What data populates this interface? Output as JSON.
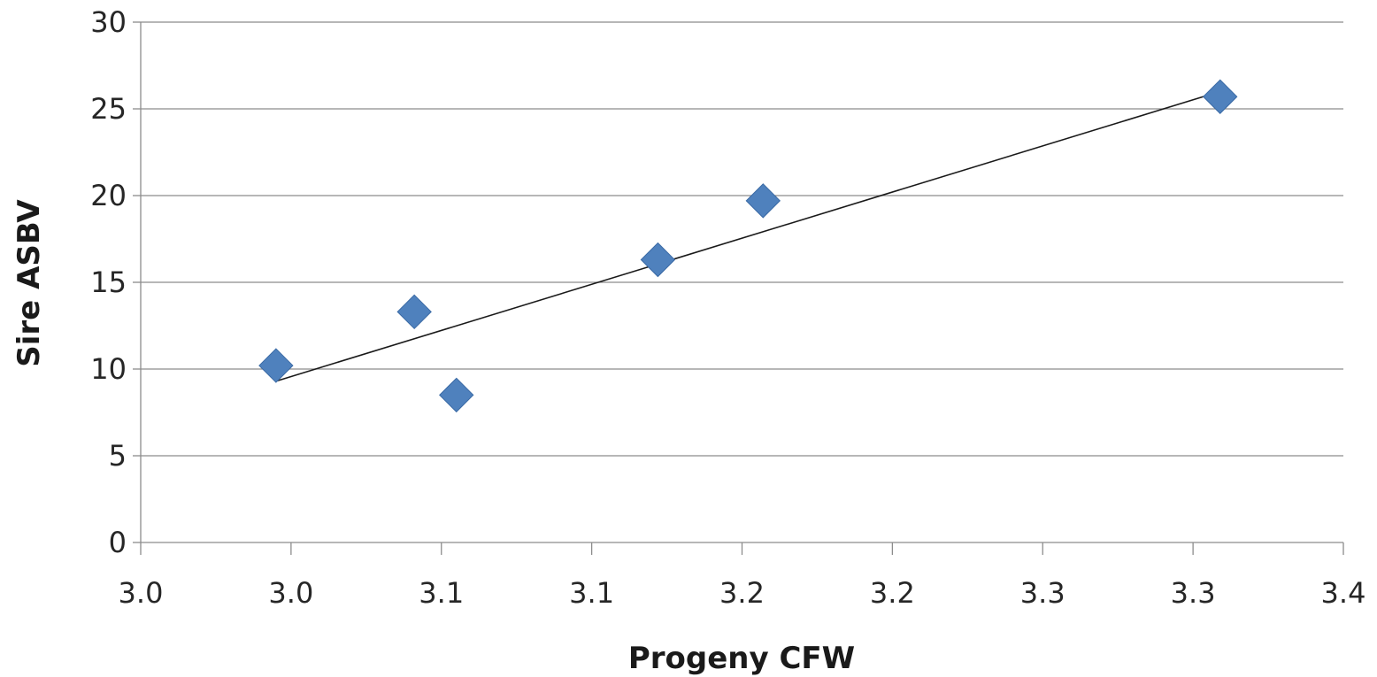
{
  "chart_data": {
    "type": "scatter",
    "title": "",
    "xlabel": "Progeny CFW",
    "ylabel": "Sire ASBV",
    "xlim": [
      2.95,
      3.35
    ],
    "ylim": [
      0,
      30
    ],
    "x_ticks": [
      2.95,
      3.0,
      3.05,
      3.1,
      3.15,
      3.2,
      3.25,
      3.3,
      3.35
    ],
    "x_tick_labels": [
      "3.0",
      "3.0",
      "3.1",
      "3.1",
      "3.2",
      "3.2",
      "3.3",
      "3.3",
      "3.4"
    ],
    "y_ticks": [
      0,
      5,
      10,
      15,
      20,
      25,
      30
    ],
    "y_tick_labels": [
      "0",
      "5",
      "10",
      "15",
      "20",
      "25",
      "30"
    ],
    "grid": {
      "horizontal": true,
      "vertical": false
    },
    "legend": "none",
    "series": [
      {
        "marker": "diamond",
        "color": "#4f81bd",
        "points": [
          {
            "x": 2.995,
            "y": 10.2
          },
          {
            "x": 3.041,
            "y": 13.3
          },
          {
            "x": 3.055,
            "y": 8.5
          },
          {
            "x": 3.122,
            "y": 16.3
          },
          {
            "x": 3.157,
            "y": 19.7
          },
          {
            "x": 3.309,
            "y": 25.7
          }
        ]
      }
    ],
    "trendline": {
      "type": "linear",
      "color": "#1a1a1a",
      "x_range": [
        2.995,
        3.309
      ],
      "y_range": [
        9.3,
        26.0
      ]
    }
  }
}
